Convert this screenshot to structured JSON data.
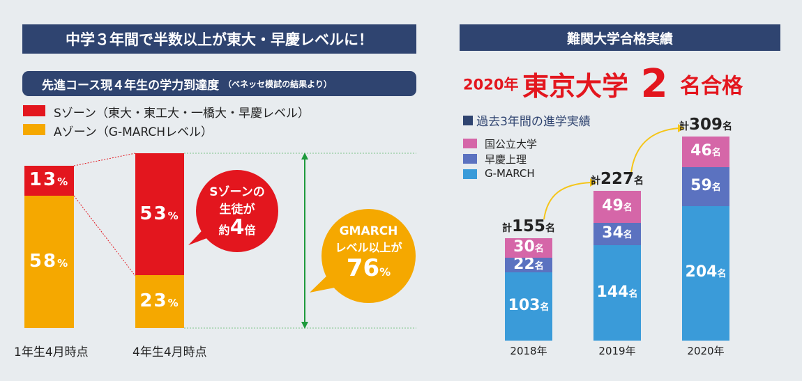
{
  "left": {
    "title": "中学３年間で半数以上が東大・早慶レベルに！",
    "subtitle": "先進コース現４年生の学力到達度",
    "subtitle_note": "（ベネッセ模試の結果より）",
    "legend": [
      {
        "label": "Sゾーン（東大・東工大・一橋大・早慶レベル）",
        "color": "#e3161e"
      },
      {
        "label": "Aゾーン（G-MARCHレベル）",
        "color": "#f5a800"
      }
    ],
    "bubble_s": {
      "line1": "Sゾーンの",
      "line2": "生徒が",
      "prefix": "約",
      "number": "4",
      "suffix": "倍"
    },
    "bubble_g": {
      "line1": "GMARCH",
      "line2": "レベル以上が",
      "number": "76",
      "unit": "%"
    }
  },
  "right": {
    "title": "難関大学合格実績",
    "headline": {
      "year": "2020年",
      "university": "東京大学",
      "count": "2",
      "suffix": "名合格"
    },
    "past_label": "過去3年間の進学実績",
    "total_prefix": "計",
    "unit": "名"
  },
  "colors": {
    "navy": "#2f4470",
    "red": "#e3161e",
    "orange": "#f5a800",
    "pink": "#d566a8",
    "indigo": "#5b72c0",
    "sky": "#3a9bd9",
    "green": "#1e9a3c",
    "yellow": "#f5c518"
  },
  "chart_data": [
    {
      "type": "bar",
      "categories": [
        "1年生4月時点",
        "4年生4月時点"
      ],
      "series": [
        {
          "name": "Aゾーン（G-MARCHレベル）",
          "values": [
            58,
            23
          ]
        },
        {
          "name": "Sゾーン（東大・東工大・一橋大・早慶レベル）",
          "values": [
            13,
            53
          ]
        }
      ],
      "unit": "%"
    },
    {
      "type": "bar",
      "categories": [
        "2018年",
        "2019年",
        "2020年"
      ],
      "series": [
        {
          "name": "G-MARCH",
          "values": [
            103,
            144,
            204
          ]
        },
        {
          "name": "早慶上理",
          "values": [
            22,
            34,
            59
          ]
        },
        {
          "name": "国公立大学",
          "values": [
            30,
            49,
            46
          ]
        }
      ],
      "totals": [
        155,
        227,
        309
      ],
      "unit": "名"
    }
  ]
}
